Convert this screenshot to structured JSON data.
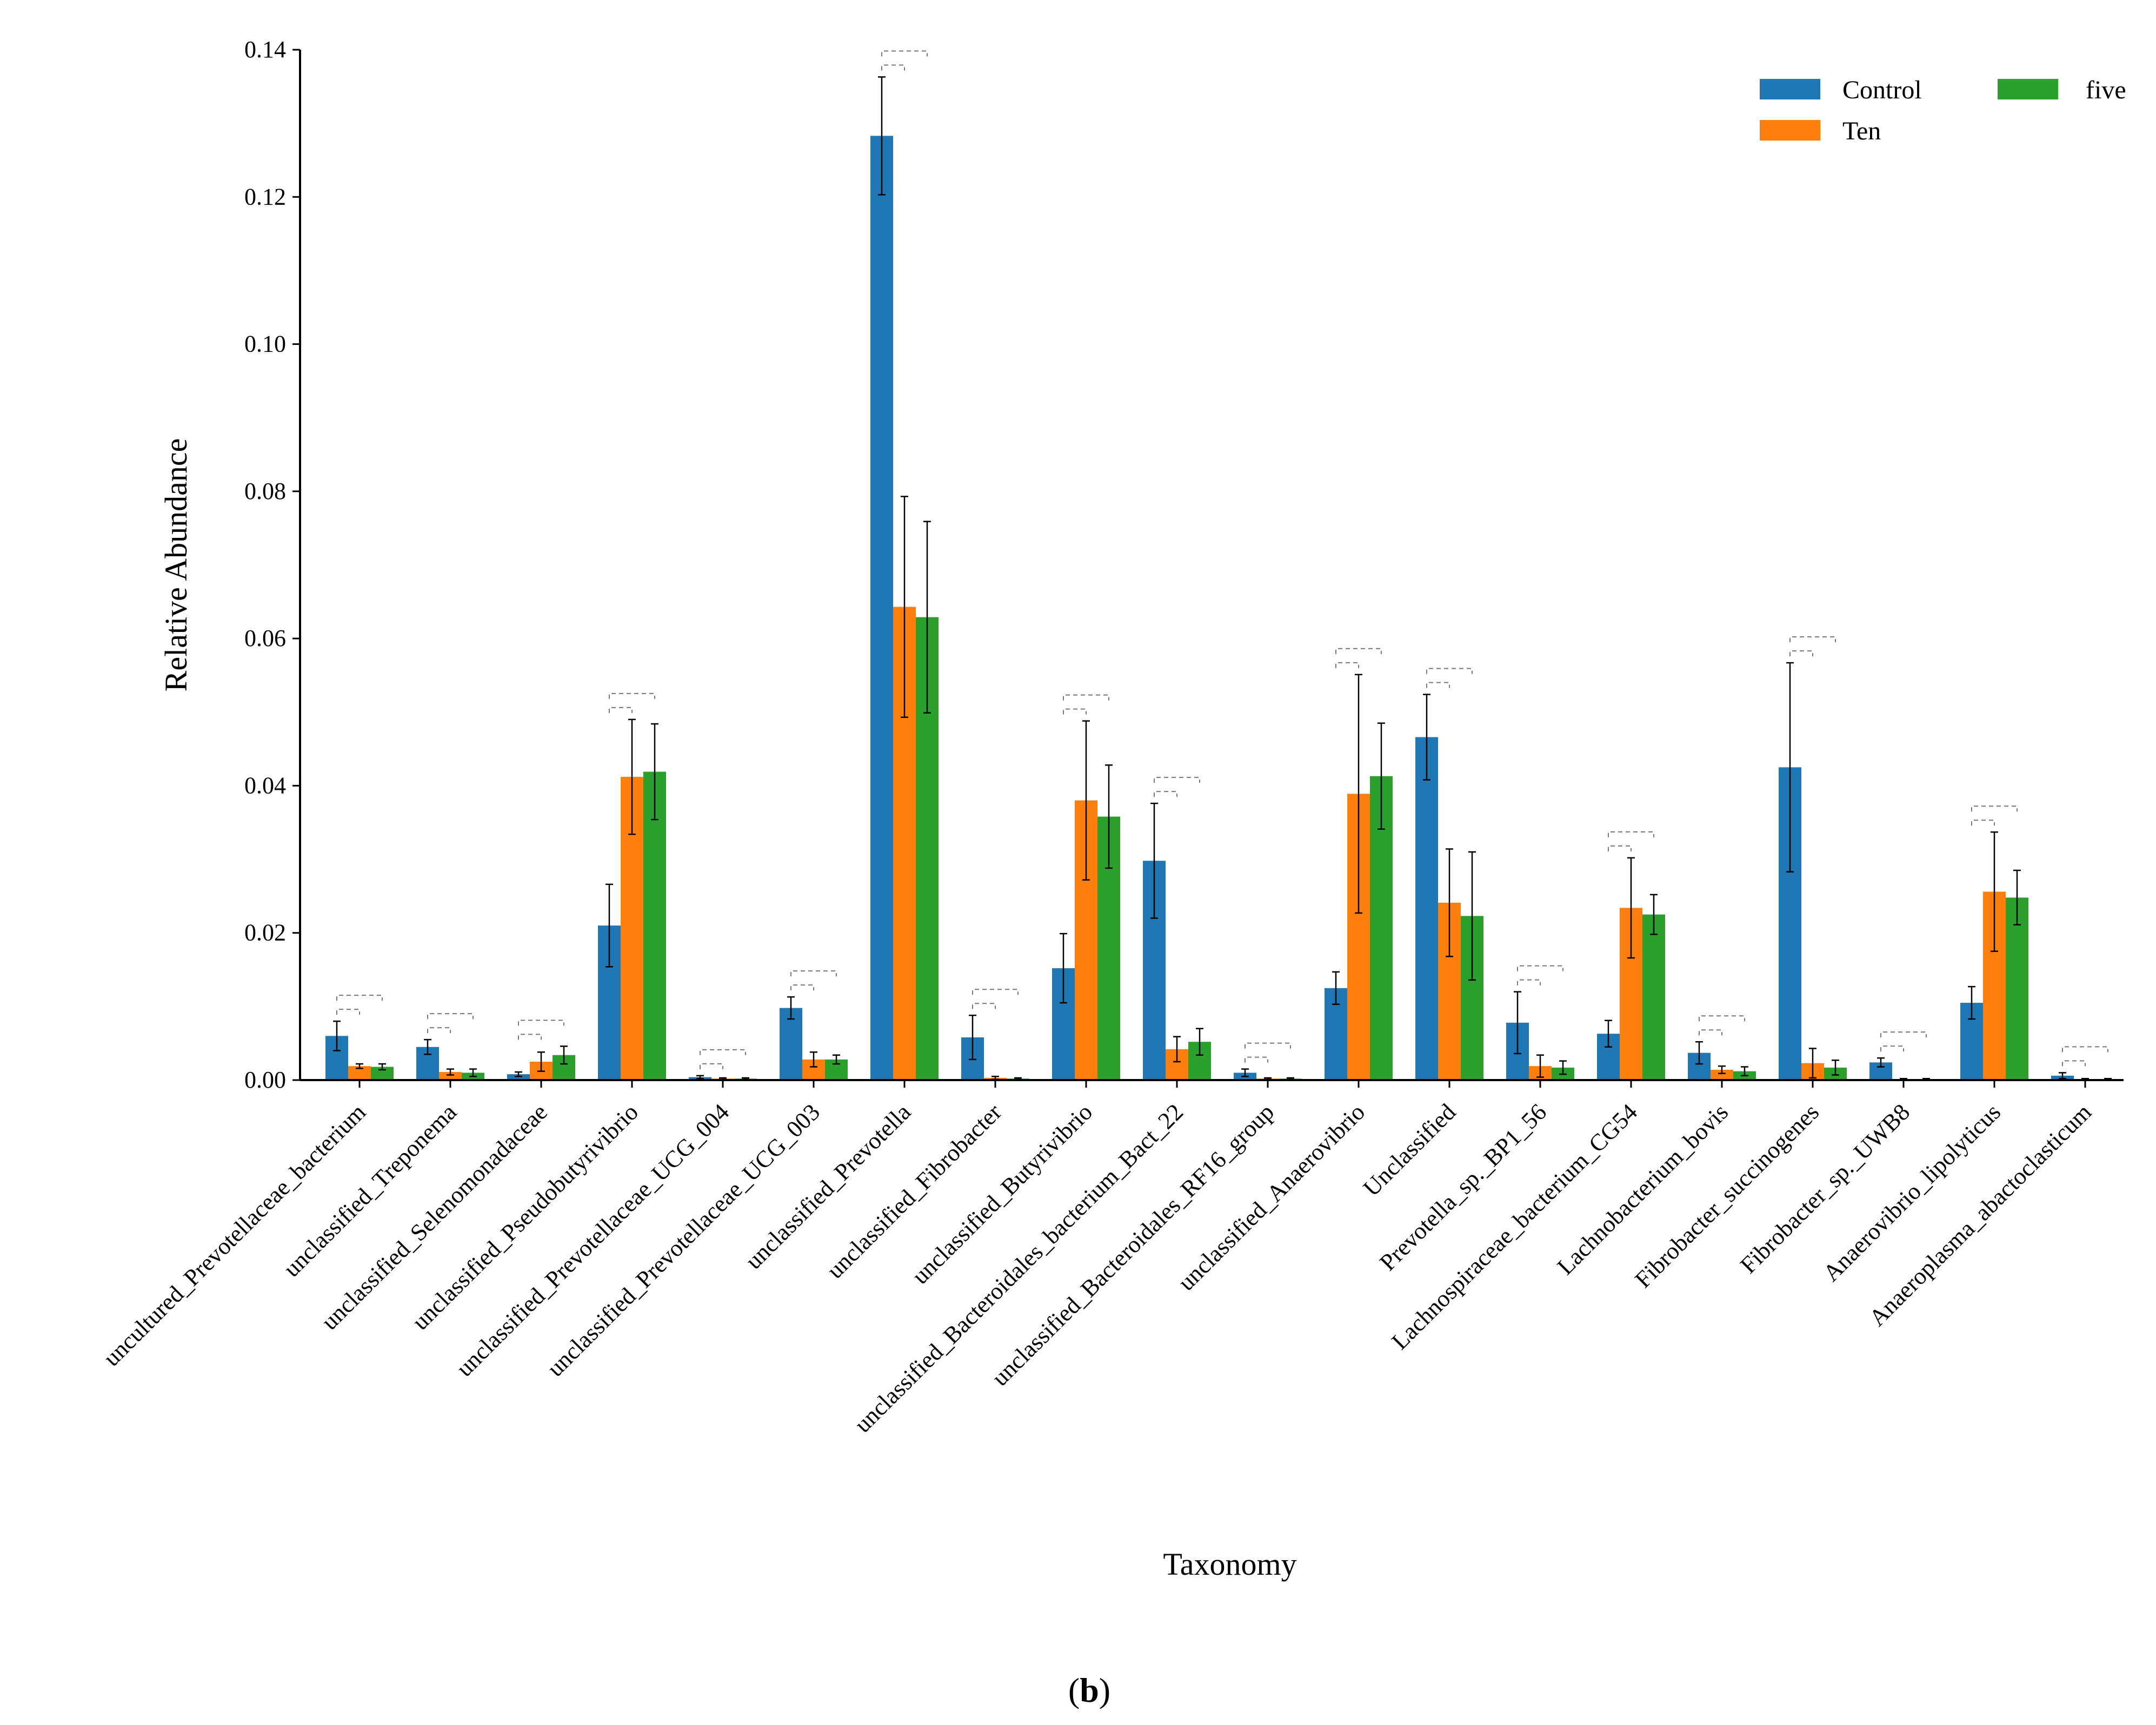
{
  "chart_data": {
    "type": "bar",
    "title": "",
    "xlabel": "Taxonomy",
    "ylabel": "Relative Abundance",
    "ylim": [
      0,
      0.14
    ],
    "yticks": [
      "0.00",
      "0.02",
      "0.04",
      "0.06",
      "0.08",
      "0.10",
      "0.12",
      "0.14"
    ],
    "legend_position": "top-right",
    "categories": [
      "uncultured_Prevotellaceae_bacterium",
      "unclassified_Treponema",
      "unclassified_Selenomonadaceae",
      "unclassified_Pseudobutyrivibrio",
      "unclassified_Prevotellaceae_UCG_004",
      "unclassified_Prevotellaceae_UCG_003",
      "unclassified_Prevotella",
      "unclassified_Fibrobacter",
      "unclassified_Butyrivibrio",
      "unclassified_Bacteroidales_bacterium_Bact_22",
      "unclassified_Bacteroidales_RF16_group",
      "unclassified_Anaerovibrio",
      "Unclassified",
      "Prevotella_sp._BP1_56",
      "Lachnospiraceae_bacterium_CG54",
      "Lachnobacterium_bovis",
      "Fibrobacter_succinogenes",
      "Fibrobacter_sp._UWB8",
      "Anaerovibrio_lipolyticus",
      "Anaeroplasma_abactoclasticum"
    ],
    "series": [
      {
        "name": "Control",
        "color": "#1f77b4",
        "values": [
          0.006,
          0.0045,
          0.0008,
          0.021,
          0.0004,
          0.0098,
          0.1283,
          0.0058,
          0.0152,
          0.0298,
          0.001,
          0.0125,
          0.0466,
          0.0078,
          0.0063,
          0.0037,
          0.0425,
          0.0024,
          0.0105,
          0.0006
        ],
        "errors": [
          0.002,
          0.001,
          0.0003,
          0.0056,
          0.0002,
          0.0015,
          0.008,
          0.003,
          0.0047,
          0.0078,
          0.0005,
          0.0022,
          0.0058,
          0.0042,
          0.0018,
          0.0015,
          0.0142,
          0.0006,
          0.0022,
          0.0004
        ]
      },
      {
        "name": "Ten",
        "color": "#ff7f0e",
        "values": [
          0.0019,
          0.0011,
          0.0025,
          0.0412,
          0.0002,
          0.0028,
          0.0643,
          0.0003,
          0.038,
          0.0042,
          0.0002,
          0.0389,
          0.0241,
          0.0019,
          0.0234,
          0.0014,
          0.0023,
          0.0001,
          0.0256,
          0.0001
        ],
        "errors": [
          0.0003,
          0.0004,
          0.0013,
          0.0078,
          0.0001,
          0.001,
          0.015,
          0.0002,
          0.0108,
          0.0017,
          0.0001,
          0.0162,
          0.0073,
          0.0015,
          0.0068,
          0.0005,
          0.002,
          0.0001,
          0.0081,
          0.0001
        ]
      },
      {
        "name": "five",
        "color": "#2ca02c",
        "values": [
          0.0018,
          0.001,
          0.0034,
          0.0419,
          0.0002,
          0.0028,
          0.0629,
          0.0002,
          0.0358,
          0.0052,
          0.0002,
          0.0413,
          0.0223,
          0.0017,
          0.0225,
          0.0012,
          0.0017,
          0.0001,
          0.0248,
          0.0001
        ],
        "errors": [
          0.0004,
          0.0005,
          0.0012,
          0.0065,
          0.0001,
          0.0006,
          0.013,
          0.0001,
          0.007,
          0.0018,
          0.0001,
          0.0072,
          0.0087,
          0.0009,
          0.0027,
          0.0006,
          0.001,
          0.0001,
          0.0037,
          0.0001
        ]
      }
    ]
  },
  "panel_label": {
    "open": "(",
    "letter": "b",
    "close": ")"
  }
}
